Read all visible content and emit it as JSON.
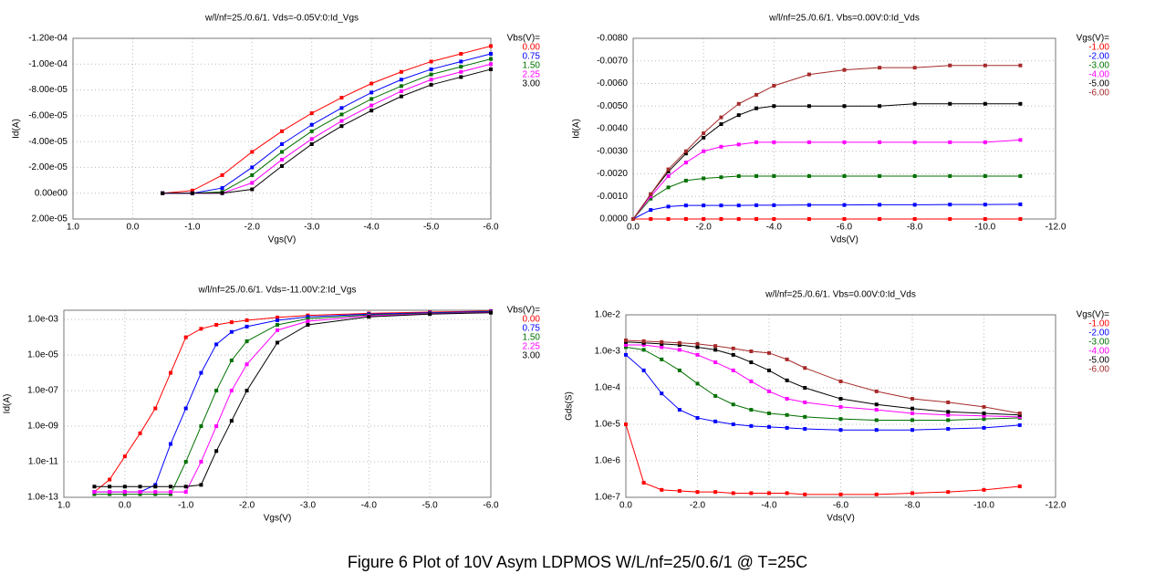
{
  "caption": "Figure 6 Plot of 10V Asym LDPMOS W/L/nf=25/0.6/1  @ T=25C",
  "chart_data": [
    {
      "type": "line",
      "title": "w/l/nf=25./0.6/1.  Vds=-0.05V:0:Id_Vgs",
      "x_label": "Vgs(V)",
      "y_label": "Id(A)",
      "legend_title": "Vbs(V)=",
      "grid": true,
      "log_y": false,
      "xlim": [
        1.0,
        -6.0
      ],
      "ylim": [
        2e-05,
        -0.00012
      ],
      "xticks": [
        {
          "value": 1,
          "label": "1.0"
        },
        {
          "value": 0,
          "label": "0.0"
        },
        {
          "value": -1,
          "label": "-1.0"
        },
        {
          "value": -2,
          "label": "-2.0"
        },
        {
          "value": -3,
          "label": "-3.0"
        },
        {
          "value": -4,
          "label": "-4.0"
        },
        {
          "value": -5,
          "label": "-5.0"
        },
        {
          "value": -6,
          "label": "-6.0"
        }
      ],
      "yticks": [
        {
          "value": -0.00012,
          "label": "-1.20e-04"
        },
        {
          "value": -0.0001,
          "label": "-1.00e-04"
        },
        {
          "value": -8e-05,
          "label": "-8.00e-05"
        },
        {
          "value": -6e-05,
          "label": "-6.00e-05"
        },
        {
          "value": -4e-05,
          "label": "-4.00e-05"
        },
        {
          "value": -2e-05,
          "label": "-2.00e-05"
        },
        {
          "value": 0,
          "label": "0.00e00"
        },
        {
          "value": 2e-05,
          "label": "2.00e-05"
        }
      ],
      "x": [
        -0.5,
        -1.0,
        -1.5,
        -2.0,
        -2.5,
        -3.0,
        -3.5,
        -4.0,
        -4.5,
        -5.0,
        -5.5,
        -6.0
      ],
      "series": [
        {
          "name": "0.00",
          "color": "#ff0000",
          "values": [
            0,
            -2e-06,
            -1.4e-05,
            -3.2e-05,
            -4.8e-05,
            -6.2e-05,
            -7.4e-05,
            -8.5e-05,
            -9.4e-05,
            -0.000102,
            -0.000108,
            -0.000114
          ]
        },
        {
          "name": "0.75",
          "color": "#0000ff",
          "values": [
            0,
            0,
            -4e-06,
            -2e-05,
            -3.8e-05,
            -5.3e-05,
            -6.6e-05,
            -7.8e-05,
            -8.8e-05,
            -9.6e-05,
            -0.000102,
            -0.000108
          ]
        },
        {
          "name": "1.50",
          "color": "#007000",
          "values": [
            0,
            0,
            -1e-06,
            -1.4e-05,
            -3.2e-05,
            -4.8e-05,
            -6.1e-05,
            -7.3e-05,
            -8.3e-05,
            -9.2e-05,
            -9.8e-05,
            -0.000104
          ]
        },
        {
          "name": "2.25",
          "color": "#ff00ff",
          "values": [
            0,
            0,
            0,
            -8e-06,
            -2.6e-05,
            -4.2e-05,
            -5.6e-05,
            -6.8e-05,
            -7.9e-05,
            -8.8e-05,
            -9.4e-05,
            -0.0001
          ]
        },
        {
          "name": "3.00",
          "color": "#000000",
          "values": [
            0,
            0,
            0,
            -3e-06,
            -2.1e-05,
            -3.8e-05,
            -5.2e-05,
            -6.4e-05,
            -7.5e-05,
            -8.4e-05,
            -9e-05,
            -9.6e-05
          ]
        }
      ]
    },
    {
      "type": "line",
      "title": "w/l/nf=25./0.6/1.  Vbs=0.00V:0:Id_Vds",
      "x_label": "Vds(V)",
      "y_label": "Id(A)",
      "legend_title": "Vgs(V)=",
      "grid": true,
      "log_y": false,
      "xlim": [
        0,
        -12
      ],
      "ylim": [
        0,
        -0.008
      ],
      "xticks": [
        {
          "value": 0,
          "label": "0.0"
        },
        {
          "value": -2,
          "label": "-2.0"
        },
        {
          "value": -4,
          "label": "-4.0"
        },
        {
          "value": -6,
          "label": "-6.0"
        },
        {
          "value": -8,
          "label": "-8.0"
        },
        {
          "value": -10,
          "label": "-10.0"
        },
        {
          "value": -12,
          "label": "-12.0"
        }
      ],
      "yticks": [
        {
          "value": -0.008,
          "label": "-0.0080"
        },
        {
          "value": -0.007,
          "label": "-0.0070"
        },
        {
          "value": -0.006,
          "label": "-0.0060"
        },
        {
          "value": -0.005,
          "label": "-0.0050"
        },
        {
          "value": -0.004,
          "label": "-0.0040"
        },
        {
          "value": -0.003,
          "label": "-0.0030"
        },
        {
          "value": -0.002,
          "label": "-0.0020"
        },
        {
          "value": -0.001,
          "label": "-0.0010"
        },
        {
          "value": 0,
          "label": "0.0000"
        }
      ],
      "x": [
        0,
        -0.5,
        -1,
        -1.5,
        -2,
        -2.5,
        -3,
        -3.5,
        -4,
        -5,
        -6,
        -7,
        -8,
        -9,
        -10,
        -11
      ],
      "series": [
        {
          "name": "-1.00",
          "color": "#ff0000",
          "values": [
            0,
            0,
            0,
            0,
            0,
            0,
            0,
            0,
            0,
            0,
            0,
            0,
            0,
            0,
            0,
            0
          ]
        },
        {
          "name": "-2.00",
          "color": "#0000ff",
          "values": [
            0,
            -0.0004,
            -0.00055,
            -0.0006,
            -0.0006,
            -0.0006,
            -0.0006,
            -0.00061,
            -0.00061,
            -0.00062,
            -0.00062,
            -0.00063,
            -0.00063,
            -0.00064,
            -0.00064,
            -0.00065
          ]
        },
        {
          "name": "-3.00",
          "color": "#007000",
          "values": [
            0,
            -0.0009,
            -0.0014,
            -0.0017,
            -0.0018,
            -0.00185,
            -0.0019,
            -0.0019,
            -0.0019,
            -0.0019,
            -0.0019,
            -0.0019,
            -0.0019,
            -0.0019,
            -0.0019,
            -0.0019
          ]
        },
        {
          "name": "-4.00",
          "color": "#ff00ff",
          "values": [
            0,
            -0.001,
            -0.0019,
            -0.0025,
            -0.003,
            -0.0032,
            -0.0033,
            -0.0034,
            -0.0034,
            -0.0034,
            -0.0034,
            -0.0034,
            -0.0034,
            -0.0034,
            -0.0034,
            -0.0035
          ]
        },
        {
          "name": "-5.00",
          "color": "#000000",
          "values": [
            0,
            -0.0011,
            -0.0021,
            -0.0029,
            -0.0036,
            -0.0042,
            -0.0046,
            -0.0049,
            -0.005,
            -0.005,
            -0.005,
            -0.005,
            -0.0051,
            -0.0051,
            -0.0051,
            -0.0051
          ]
        },
        {
          "name": "-6.00",
          "color": "#a52a2a",
          "values": [
            0,
            -0.0011,
            -0.0022,
            -0.003,
            -0.0038,
            -0.0045,
            -0.0051,
            -0.0055,
            -0.0059,
            -0.0064,
            -0.0066,
            -0.0067,
            -0.0067,
            -0.0068,
            -0.0068,
            -0.0068
          ]
        }
      ]
    },
    {
      "type": "line",
      "title": "w/l/nf=25./0.6/1.  Vds=-11.00V:2:Id_Vgs",
      "x_label": "Vgs(V)",
      "y_label": "Id(A)",
      "legend_title": "Vbs(V)=",
      "grid": true,
      "log_y": true,
      "xlim": [
        1.0,
        -6.0
      ],
      "ylim": [
        1e-13,
        0.0033
      ],
      "xticks": [
        {
          "value": 1,
          "label": "1.0"
        },
        {
          "value": 0,
          "label": "0.0"
        },
        {
          "value": -1,
          "label": "-1.0"
        },
        {
          "value": -2,
          "label": "-2.0"
        },
        {
          "value": -3,
          "label": "-3.0"
        },
        {
          "value": -4,
          "label": "-4.0"
        },
        {
          "value": -5,
          "label": "-5.0"
        },
        {
          "value": -6,
          "label": "-6.0"
        }
      ],
      "yticks": [
        {
          "value": 0.001,
          "label": "1.0e-03"
        },
        {
          "value": 1e-05,
          "label": "1.0e-05"
        },
        {
          "value": 1e-07,
          "label": "1.0e-07"
        },
        {
          "value": 1e-09,
          "label": "1.0e-09"
        },
        {
          "value": 1e-11,
          "label": "1.0e-11"
        },
        {
          "value": 1e-13,
          "label": "1.0e-13"
        }
      ],
      "x": [
        0.5,
        0.25,
        0.0,
        -0.25,
        -0.5,
        -0.75,
        -1.0,
        -1.25,
        -1.5,
        -1.75,
        -2.0,
        -2.5,
        -3.0,
        -4.0,
        -5.0,
        -6.0
      ],
      "series": [
        {
          "name": "0.00",
          "color": "#ff0000",
          "values": [
            2e-13,
            1e-12,
            2e-11,
            4e-10,
            1e-08,
            1e-06,
            0.0001,
            0.0003,
            0.0005,
            0.0007,
            0.0009,
            0.0013,
            0.0017,
            0.0022,
            0.0026,
            0.003
          ]
        },
        {
          "name": "0.75",
          "color": "#0000ff",
          "values": [
            2e-13,
            2e-13,
            2e-13,
            2e-13,
            5e-13,
            1e-10,
            1e-08,
            1e-06,
            4e-05,
            0.0002,
            0.0004,
            0.0009,
            0.0014,
            0.002,
            0.0024,
            0.0028
          ]
        },
        {
          "name": "1.50",
          "color": "#007000",
          "values": [
            1.5e-13,
            1.5e-13,
            1.5e-13,
            1.5e-13,
            1.5e-13,
            1.5e-13,
            1e-11,
            1e-09,
            1e-07,
            5e-06,
            6e-05,
            0.0005,
            0.0011,
            0.0018,
            0.0022,
            0.0026
          ]
        },
        {
          "name": "2.25",
          "color": "#ff00ff",
          "values": [
            2e-13,
            2e-13,
            2e-13,
            2e-13,
            2e-13,
            2e-13,
            2e-13,
            1e-11,
            1e-09,
            1e-07,
            3e-06,
            0.00025,
            0.0008,
            0.0016,
            0.0021,
            0.0025
          ]
        },
        {
          "name": "3.00",
          "color": "#000000",
          "values": [
            4e-13,
            4e-13,
            4e-13,
            4e-13,
            4e-13,
            4e-13,
            4e-13,
            5e-13,
            4e-11,
            2e-09,
            1e-07,
            5e-05,
            0.0005,
            0.0014,
            0.002,
            0.0024
          ]
        }
      ]
    },
    {
      "type": "line",
      "title": "w/l/nf=25./0.6/1.  Vbs=0.00V:0:Id_Vds",
      "x_label": "Vds(V)",
      "y_label": "Gds(S)",
      "legend_title": "Vgs(V)=",
      "grid": true,
      "log_y": true,
      "xlim": [
        0,
        -12
      ],
      "ylim": [
        1e-07,
        0.01
      ],
      "xticks": [
        {
          "value": 0,
          "label": "0.0"
        },
        {
          "value": -2,
          "label": "-2.0"
        },
        {
          "value": -4,
          "label": "-4.0"
        },
        {
          "value": -6,
          "label": "-6.0"
        },
        {
          "value": -8,
          "label": "-8.0"
        },
        {
          "value": -10,
          "label": "-10.0"
        },
        {
          "value": -12,
          "label": "-12.0"
        }
      ],
      "yticks": [
        {
          "value": 0.01,
          "label": "1.0e-2"
        },
        {
          "value": 0.001,
          "label": "1.0e-3"
        },
        {
          "value": 0.0001,
          "label": "1.0e-4"
        },
        {
          "value": 1e-05,
          "label": "1.0e-5"
        },
        {
          "value": 1e-06,
          "label": "1.0e-6"
        },
        {
          "value": 1e-07,
          "label": "1.0e-7"
        }
      ],
      "x": [
        0,
        -0.5,
        -1,
        -1.5,
        -2,
        -2.5,
        -3,
        -3.5,
        -4,
        -4.5,
        -5,
        -6,
        -7,
        -8,
        -9,
        -10,
        -11
      ],
      "series": [
        {
          "name": "-1.00",
          "color": "#ff0000",
          "values": [
            1e-05,
            2.5e-07,
            1.6e-07,
            1.5e-07,
            1.4e-07,
            1.4e-07,
            1.3e-07,
            1.3e-07,
            1.3e-07,
            1.3e-07,
            1.2e-07,
            1.2e-07,
            1.2e-07,
            1.3e-07,
            1.4e-07,
            1.6e-07,
            2e-07
          ]
        },
        {
          "name": "-2.00",
          "color": "#0000ff",
          "values": [
            0.0008,
            0.0003,
            7e-05,
            2.5e-05,
            1.5e-05,
            1.2e-05,
            1e-05,
            9e-06,
            8.5e-06,
            8e-06,
            7.5e-06,
            7e-06,
            7e-06,
            7e-06,
            7.5e-06,
            8e-06,
            9.5e-06
          ]
        },
        {
          "name": "-3.00",
          "color": "#007000",
          "values": [
            0.0013,
            0.0011,
            0.0006,
            0.0003,
            0.00013,
            6e-05,
            3.5e-05,
            2.5e-05,
            2e-05,
            1.8e-05,
            1.6e-05,
            1.4e-05,
            1.3e-05,
            1.3e-05,
            1.3e-05,
            1.4e-05,
            1.5e-05
          ]
        },
        {
          "name": "-4.00",
          "color": "#ff00ff",
          "values": [
            0.0015,
            0.0015,
            0.0013,
            0.0011,
            0.0008,
            0.0005,
            0.0003,
            0.00015,
            8e-05,
            5e-05,
            4e-05,
            3e-05,
            2.5e-05,
            2e-05,
            1.8e-05,
            1.7e-05,
            1.6e-05
          ]
        },
        {
          "name": "-5.00",
          "color": "#000000",
          "values": [
            0.0018,
            0.0017,
            0.0016,
            0.0015,
            0.0013,
            0.0011,
            0.0008,
            0.0005,
            0.0003,
            0.00016,
            0.0001,
            5e-05,
            3.5e-05,
            2.7e-05,
            2.2e-05,
            2e-05,
            1.8e-05
          ]
        },
        {
          "name": "-6.00",
          "color": "#a52a2a",
          "values": [
            0.002,
            0.0019,
            0.0018,
            0.0017,
            0.0016,
            0.0014,
            0.0012,
            0.001,
            0.0009,
            0.0006,
            0.00035,
            0.00015,
            8e-05,
            5e-05,
            4e-05,
            3e-05,
            2e-05
          ]
        }
      ]
    }
  ]
}
